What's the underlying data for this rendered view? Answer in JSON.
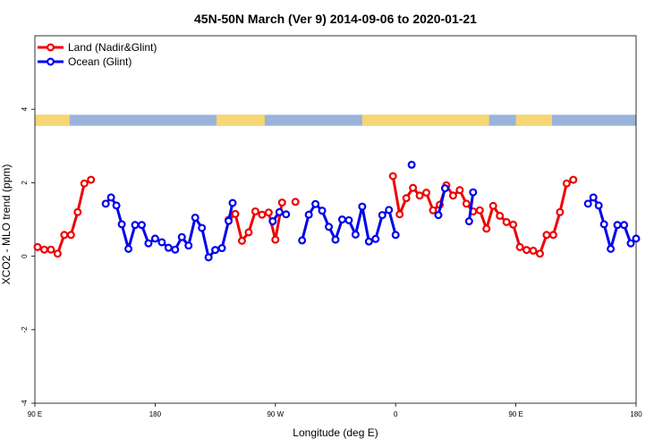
{
  "chart_data": {
    "type": "line",
    "title": "45N-50N March (Ver 9)   2014-09-06 to 2020-01-21",
    "xlabel": "Longitude (deg E)",
    "ylabel": "XCO2 - MLO trend (ppm)",
    "xlim": [
      90,
      540
    ],
    "ylim": [
      -4,
      6
    ],
    "x_ticks": [
      {
        "value": 90,
        "label": "90 E"
      },
      {
        "value": 180,
        "label": "180"
      },
      {
        "value": 270,
        "label": "90 W"
      },
      {
        "value": 360,
        "label": "0"
      },
      {
        "value": 450,
        "label": "90 E"
      },
      {
        "value": 540,
        "label": "180"
      }
    ],
    "y_ticks": [
      {
        "value": -4,
        "label": "-4"
      },
      {
        "value": -2,
        "label": "-2"
      },
      {
        "value": 0,
        "label": "0"
      },
      {
        "value": 2,
        "label": "2"
      },
      {
        "value": 4,
        "label": "4"
      }
    ],
    "grid": false,
    "legend_position": "top-left",
    "land_strip": {
      "y_range": [
        3.55,
        3.85
      ],
      "ocean_color": "#9ab3d9",
      "land_color": "#f7d674"
    },
    "series": [
      {
        "name": "Land (Nadir&Glint)",
        "color": "#ee0000",
        "segments": [
          [
            [
              92,
              0.25
            ],
            [
              97,
              0.18
            ],
            [
              102,
              0.18
            ],
            [
              107,
              0.07
            ],
            [
              112,
              0.58
            ],
            [
              117,
              0.58
            ],
            [
              122,
              1.2
            ],
            [
              127,
              1.98
            ],
            [
              132,
              2.08
            ]
          ],
          [
            [
              235,
              0.99
            ],
            [
              240,
              1.15
            ],
            [
              245,
              0.42
            ],
            [
              250,
              0.65
            ],
            [
              255,
              1.22
            ],
            [
              260,
              1.13
            ],
            [
              265,
              1.19
            ],
            [
              270,
              0.45
            ],
            [
              275,
              1.46
            ]
          ],
          [
            [
              285,
              1.48
            ]
          ],
          [
            [
              358,
              2.18
            ],
            [
              363,
              1.14
            ],
            [
              368,
              1.58
            ],
            [
              373,
              1.86
            ],
            [
              378,
              1.65
            ],
            [
              383,
              1.73
            ],
            [
              388,
              1.25
            ],
            [
              393,
              1.4
            ],
            [
              398,
              1.93
            ],
            [
              403,
              1.65
            ],
            [
              408,
              1.8
            ],
            [
              413,
              1.43
            ],
            [
              418,
              1.22
            ],
            [
              423,
              1.25
            ],
            [
              428,
              0.75
            ],
            [
              433,
              1.37
            ],
            [
              438,
              1.1
            ],
            [
              443,
              0.93
            ],
            [
              448,
              0.86
            ],
            [
              453,
              0.25
            ],
            [
              458,
              0.17
            ],
            [
              463,
              0.15
            ],
            [
              468,
              0.07
            ],
            [
              473,
              0.58
            ],
            [
              478,
              0.58
            ],
            [
              483,
              1.2
            ],
            [
              488,
              1.98
            ],
            [
              493,
              2.08
            ]
          ]
        ]
      },
      {
        "name": "Ocean (Glint)",
        "color": "#0000ee",
        "segments": [
          [
            [
              143,
              1.43
            ],
            [
              147,
              1.6
            ],
            [
              151,
              1.38
            ],
            [
              155,
              0.87
            ],
            [
              160,
              0.2
            ],
            [
              165,
              0.85
            ],
            [
              170,
              0.85
            ],
            [
              175,
              0.35
            ],
            [
              180,
              0.48
            ],
            [
              185,
              0.38
            ],
            [
              190,
              0.23
            ],
            [
              195,
              0.18
            ],
            [
              200,
              0.52
            ],
            [
              205,
              0.29
            ],
            [
              210,
              1.05
            ],
            [
              215,
              0.77
            ],
            [
              220,
              -0.03
            ],
            [
              225,
              0.17
            ],
            [
              230,
              0.22
            ],
            [
              235,
              0.96
            ],
            [
              238,
              1.45
            ]
          ],
          [
            [
              268,
              0.95
            ],
            [
              273,
              1.2
            ],
            [
              278,
              1.14
            ]
          ],
          [
            [
              290,
              0.43
            ],
            [
              295,
              1.13
            ],
            [
              300,
              1.42
            ],
            [
              305,
              1.24
            ],
            [
              310,
              0.8
            ],
            [
              315,
              0.45
            ],
            [
              320,
              1.0
            ],
            [
              325,
              0.98
            ],
            [
              330,
              0.59
            ],
            [
              335,
              1.35
            ],
            [
              340,
              0.4
            ],
            [
              345,
              0.47
            ],
            [
              350,
              1.12
            ],
            [
              355,
              1.26
            ],
            [
              360,
              0.58
            ]
          ],
          [
            [
              372,
              2.49
            ]
          ],
          [
            [
              392,
              1.12
            ],
            [
              397,
              1.85
            ]
          ],
          [
            [
              415,
              0.95
            ],
            [
              418,
              1.74
            ]
          ],
          [
            [
              504,
              1.43
            ],
            [
              508,
              1.6
            ],
            [
              512,
              1.38
            ],
            [
              516,
              0.87
            ],
            [
              521,
              0.2
            ],
            [
              526,
              0.85
            ],
            [
              531,
              0.85
            ],
            [
              536,
              0.35
            ],
            [
              540,
              0.48
            ]
          ]
        ]
      }
    ]
  }
}
